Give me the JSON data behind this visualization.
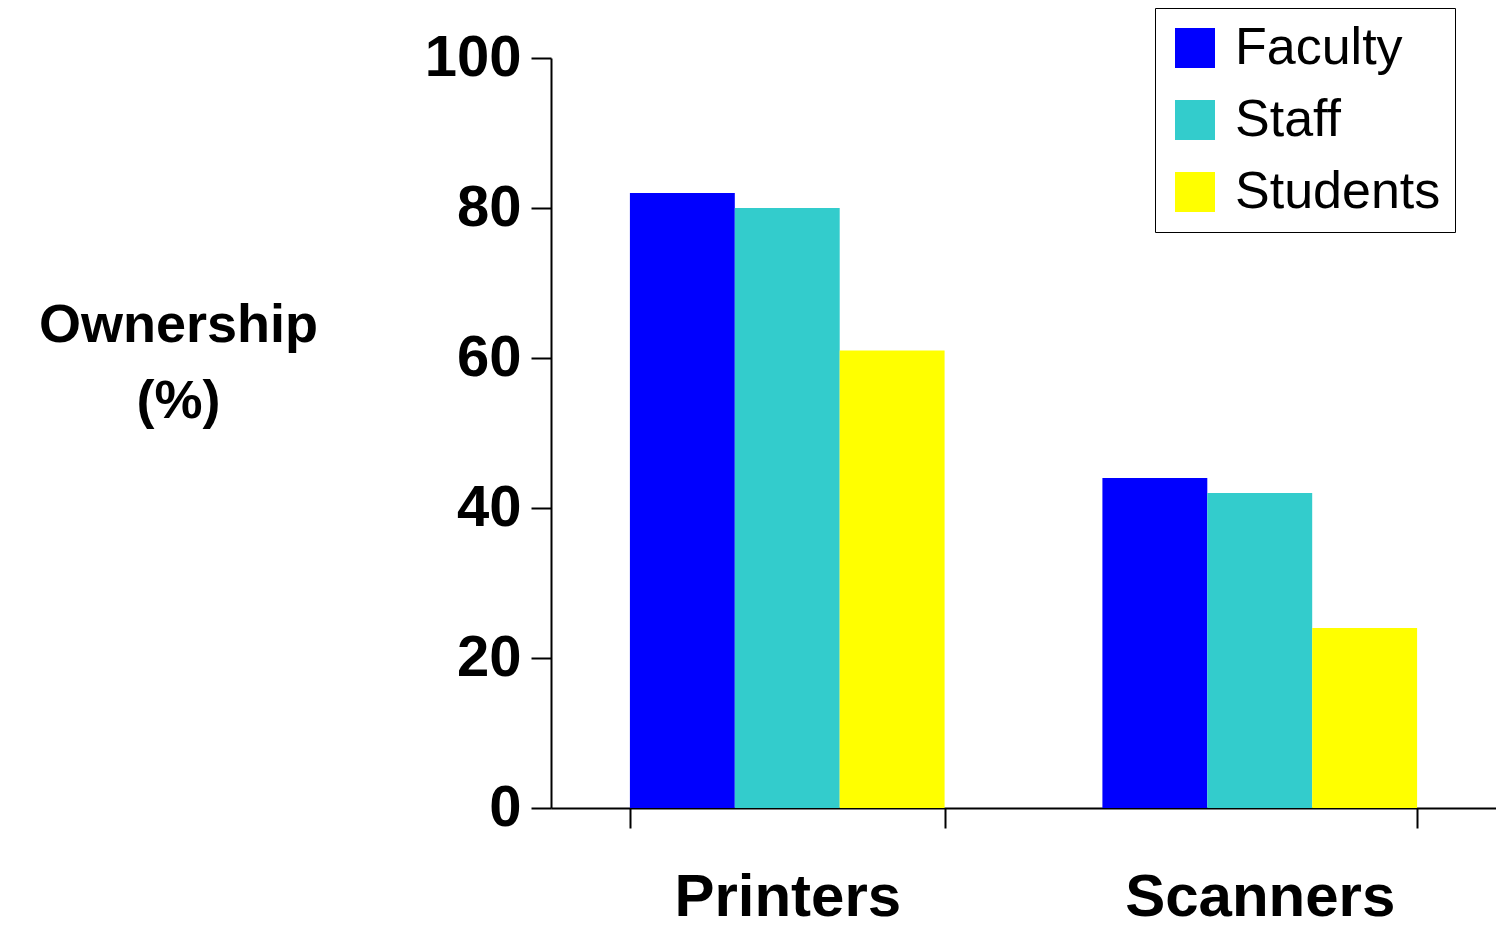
{
  "chart_data": {
    "type": "bar",
    "ylabel": "Ownership (%)",
    "categories": [
      "Printers",
      "Scanners"
    ],
    "series": [
      {
        "name": "Faculty",
        "color": "#0000ff",
        "values": [
          82,
          44
        ]
      },
      {
        "name": "Staff",
        "color": "#33cccc",
        "values": [
          80,
          42
        ]
      },
      {
        "name": "Students",
        "color": "#ffff00",
        "values": [
          61,
          24
        ]
      }
    ],
    "ylim": [
      0,
      100
    ],
    "yticks": [
      0,
      20,
      40,
      60,
      80,
      100
    ],
    "grid": false,
    "legend": "top right"
  }
}
